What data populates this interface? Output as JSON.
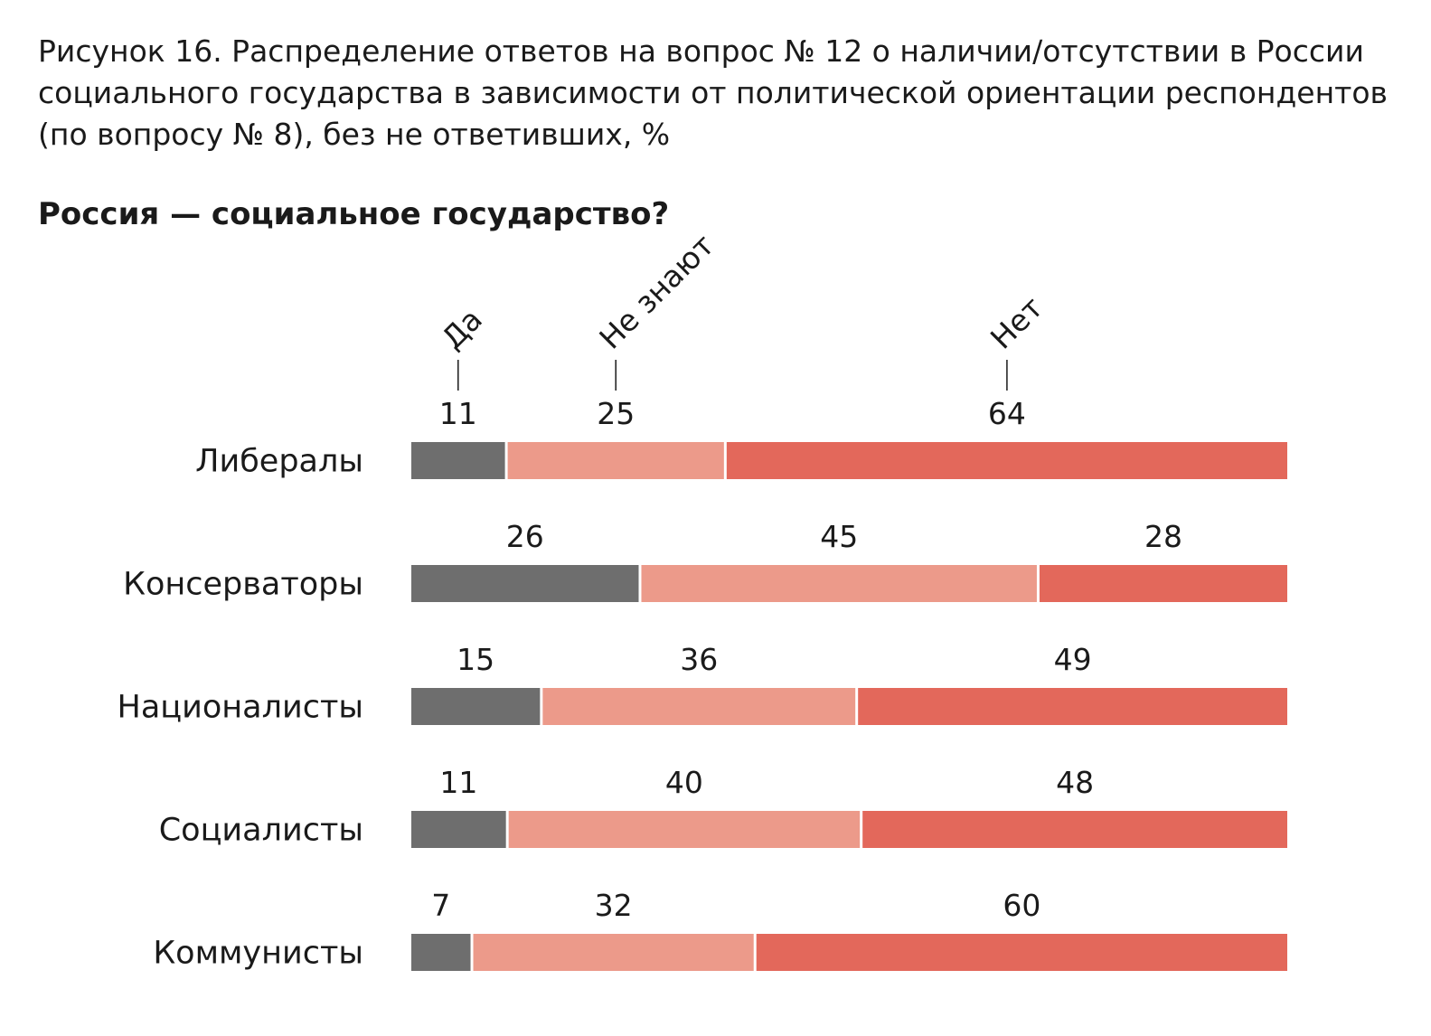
{
  "figure_caption": "Рисунок 16. Распределение ответов на вопрос № 12 о наличии/отсутствии в России социального государства в зависимости от политической ориентации респондентов (по вопросу № 8), без не ответивших, %",
  "colors": {
    "yes": "#6e6e6e",
    "dont_know": "#ec9a8a",
    "no": "#e3685b",
    "separator": "#ffffff"
  },
  "chart_data": {
    "type": "bar",
    "orientation": "horizontal",
    "stacked": true,
    "title": "Россия — социальное государство?",
    "categories": [
      "Либералы",
      "Консерваторы",
      "Националисты",
      "Социалисты",
      "Коммунисты"
    ],
    "series": [
      {
        "name": "Да",
        "values": [
          11,
          26,
          15,
          11,
          7
        ]
      },
      {
        "name": "Не знают",
        "values": [
          25,
          45,
          36,
          40,
          32
        ]
      },
      {
        "name": "Нет",
        "values": [
          64,
          28,
          49,
          48,
          60
        ]
      }
    ],
    "xlim": [
      0,
      100
    ],
    "grid": false,
    "legend_placement": "top, rotated labels above first bar"
  }
}
